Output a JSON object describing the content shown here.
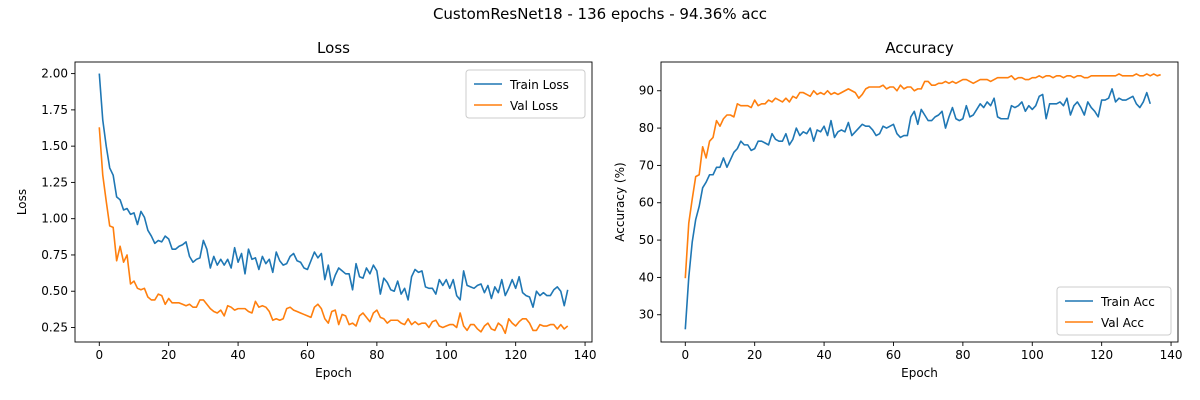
{
  "figure": {
    "suptitle": "CustomResNet18 - 136 epochs - 94.36% acc"
  },
  "colors": {
    "train": "#1f77b4",
    "val": "#ff7f0e"
  },
  "chart_data": [
    {
      "type": "line",
      "title": "Loss",
      "xlabel": "Epoch",
      "ylabel": "Loss",
      "xlim": [
        -7,
        142
      ],
      "ylim": [
        0.15,
        2.08
      ],
      "xticks": [
        0,
        20,
        40,
        60,
        80,
        100,
        120,
        140
      ],
      "yticks": [
        0.25,
        0.5,
        0.75,
        1.0,
        1.25,
        1.5,
        1.75,
        2.0
      ],
      "ytick_labels": [
        "0.25",
        "0.50",
        "0.75",
        "1.00",
        "1.25",
        "1.50",
        "1.75",
        "2.00"
      ],
      "legend_position": "upper right",
      "series": [
        {
          "name": "Train Loss",
          "color": "#1f77b4",
          "values": [
            2.0,
            1.68,
            1.5,
            1.35,
            1.3,
            1.15,
            1.13,
            1.06,
            1.07,
            1.03,
            1.04,
            0.96,
            1.05,
            1.01,
            0.92,
            0.88,
            0.83,
            0.85,
            0.84,
            0.88,
            0.86,
            0.79,
            0.79,
            0.81,
            0.82,
            0.84,
            0.74,
            0.7,
            0.72,
            0.73,
            0.85,
            0.79,
            0.66,
            0.74,
            0.68,
            0.72,
            0.68,
            0.72,
            0.66,
            0.8,
            0.7,
            0.76,
            0.62,
            0.79,
            0.72,
            0.73,
            0.65,
            0.74,
            0.69,
            0.72,
            0.63,
            0.77,
            0.71,
            0.68,
            0.69,
            0.74,
            0.76,
            0.71,
            0.7,
            0.66,
            0.65,
            0.71,
            0.77,
            0.73,
            0.76,
            0.58,
            0.68,
            0.54,
            0.61,
            0.66,
            0.64,
            0.62,
            0.62,
            0.51,
            0.69,
            0.6,
            0.59,
            0.66,
            0.62,
            0.68,
            0.64,
            0.48,
            0.59,
            0.56,
            0.51,
            0.5,
            0.57,
            0.48,
            0.52,
            0.44,
            0.6,
            0.65,
            0.63,
            0.64,
            0.53,
            0.52,
            0.52,
            0.48,
            0.58,
            0.54,
            0.58,
            0.52,
            0.58,
            0.47,
            0.44,
            0.64,
            0.54,
            0.53,
            0.52,
            0.54,
            0.55,
            0.49,
            0.54,
            0.45,
            0.53,
            0.49,
            0.58,
            0.47,
            0.52,
            0.58,
            0.52,
            0.6,
            0.49,
            0.47,
            0.46,
            0.39,
            0.5,
            0.47,
            0.49,
            0.47,
            0.47,
            0.51,
            0.53,
            0.5,
            0.4,
            0.51
          ]
        },
        {
          "name": "Val Loss",
          "color": "#ff7f0e",
          "values": [
            1.63,
            1.3,
            1.12,
            0.95,
            0.94,
            0.71,
            0.81,
            0.7,
            0.75,
            0.55,
            0.57,
            0.52,
            0.51,
            0.52,
            0.46,
            0.44,
            0.44,
            0.48,
            0.47,
            0.41,
            0.45,
            0.42,
            0.42,
            0.42,
            0.41,
            0.4,
            0.41,
            0.39,
            0.39,
            0.44,
            0.44,
            0.41,
            0.38,
            0.36,
            0.35,
            0.37,
            0.33,
            0.4,
            0.39,
            0.37,
            0.38,
            0.38,
            0.38,
            0.36,
            0.35,
            0.43,
            0.39,
            0.4,
            0.39,
            0.36,
            0.3,
            0.31,
            0.3,
            0.31,
            0.38,
            0.39,
            0.37,
            0.36,
            0.35,
            0.34,
            0.33,
            0.32,
            0.39,
            0.41,
            0.38,
            0.31,
            0.28,
            0.36,
            0.37,
            0.27,
            0.34,
            0.33,
            0.27,
            0.28,
            0.26,
            0.33,
            0.35,
            0.32,
            0.29,
            0.35,
            0.37,
            0.32,
            0.31,
            0.28,
            0.3,
            0.3,
            0.3,
            0.28,
            0.27,
            0.31,
            0.27,
            0.29,
            0.27,
            0.28,
            0.28,
            0.25,
            0.29,
            0.3,
            0.26,
            0.25,
            0.26,
            0.27,
            0.27,
            0.25,
            0.35,
            0.26,
            0.23,
            0.27,
            0.27,
            0.24,
            0.22,
            0.26,
            0.28,
            0.24,
            0.23,
            0.28,
            0.26,
            0.21,
            0.31,
            0.28,
            0.26,
            0.29,
            0.31,
            0.31,
            0.28,
            0.23,
            0.23,
            0.27,
            0.26,
            0.26,
            0.27,
            0.27,
            0.24,
            0.27,
            0.24,
            0.26
          ]
        }
      ]
    },
    {
      "type": "line",
      "title": "Accuracy",
      "xlabel": "Epoch",
      "ylabel": "Accuracy (%)",
      "xlim": [
        -7,
        142
      ],
      "ylim": [
        22.7,
        97.7
      ],
      "xticks": [
        0,
        20,
        40,
        60,
        80,
        100,
        120,
        140
      ],
      "yticks": [
        30,
        40,
        50,
        60,
        70,
        80,
        90
      ],
      "ytick_labels": [
        "30",
        "40",
        "50",
        "60",
        "70",
        "80",
        "90"
      ],
      "legend_position": "lower right",
      "series": [
        {
          "name": "Train Acc",
          "color": "#1f77b4",
          "values": [
            26.1,
            40,
            49.5,
            55.5,
            59,
            64,
            65.5,
            67.5,
            67.5,
            69.5,
            69.5,
            72,
            69.5,
            71.5,
            73.5,
            74.5,
            76.5,
            75.5,
            75.5,
            74,
            74.5,
            76.5,
            76.5,
            76,
            75.5,
            78.5,
            77,
            76.5,
            76.5,
            78.5,
            75.5,
            77,
            80,
            78,
            79,
            78.5,
            80,
            76.5,
            79.5,
            79,
            80.5,
            78,
            82,
            77.5,
            79,
            79.5,
            79,
            81.5,
            78,
            79,
            80,
            81,
            80.5,
            80.5,
            79.5,
            78,
            78.5,
            80.5,
            80,
            80.5,
            81,
            78.5,
            77.5,
            78,
            78,
            83,
            84.5,
            81,
            85,
            83.5,
            82,
            82,
            83,
            83.5,
            84.5,
            80,
            83,
            85.5,
            82.5,
            82,
            82.5,
            86,
            83,
            83.5,
            85,
            86.5,
            85.5,
            87,
            86,
            88,
            83,
            82.5,
            82.5,
            82.5,
            86,
            85.5,
            86,
            87,
            84.5,
            86,
            85,
            86,
            88.5,
            89,
            82.5,
            86.5,
            86.5,
            86.5,
            87,
            86,
            88,
            83.5,
            86,
            87,
            85.5,
            83.5,
            87,
            85.5,
            84.5,
            83,
            87.5,
            87.5,
            88,
            90.5,
            87,
            88,
            87.5,
            87.5,
            88,
            88.5,
            86.5,
            85.5,
            87,
            89.5,
            86.5
          ]
        },
        {
          "name": "Val Acc",
          "color": "#ff7f0e",
          "values": [
            39.8,
            54.5,
            61,
            67,
            67.5,
            75,
            72,
            76.5,
            77.5,
            82,
            80.5,
            82.5,
            83.5,
            83.5,
            83,
            86.5,
            86,
            86,
            86,
            85.5,
            87.5,
            86,
            86.5,
            86.5,
            87.5,
            87,
            88,
            87.5,
            87,
            88,
            87,
            88.5,
            88,
            89.5,
            89.5,
            89,
            88.5,
            90,
            89,
            89.5,
            89,
            90,
            89,
            89.5,
            89,
            89.5,
            90,
            90.5,
            90,
            89.5,
            88,
            89,
            90.5,
            91,
            91,
            91,
            91,
            91.5,
            90.5,
            91,
            91,
            90,
            91.5,
            90.5,
            91,
            91,
            90,
            90.5,
            90.5,
            92.5,
            92.5,
            91.5,
            91.5,
            92,
            92,
            92.5,
            92,
            92.5,
            92,
            92.5,
            93,
            93,
            92.5,
            92,
            92.5,
            93,
            93,
            93,
            92.5,
            93,
            93.5,
            93.5,
            93.5,
            93.5,
            94,
            93,
            93.5,
            93.5,
            93,
            93,
            93.5,
            93.5,
            94,
            93.5,
            94,
            94,
            93.5,
            94,
            94,
            93.5,
            94,
            94,
            93.5,
            94,
            94,
            93.5,
            93.5,
            94,
            94,
            94,
            94,
            94,
            94,
            94,
            94,
            94.5,
            94,
            94,
            94,
            94,
            94.5,
            94,
            94,
            94.5,
            94,
            94.5,
            94,
            94.3
          ]
        }
      ]
    }
  ]
}
